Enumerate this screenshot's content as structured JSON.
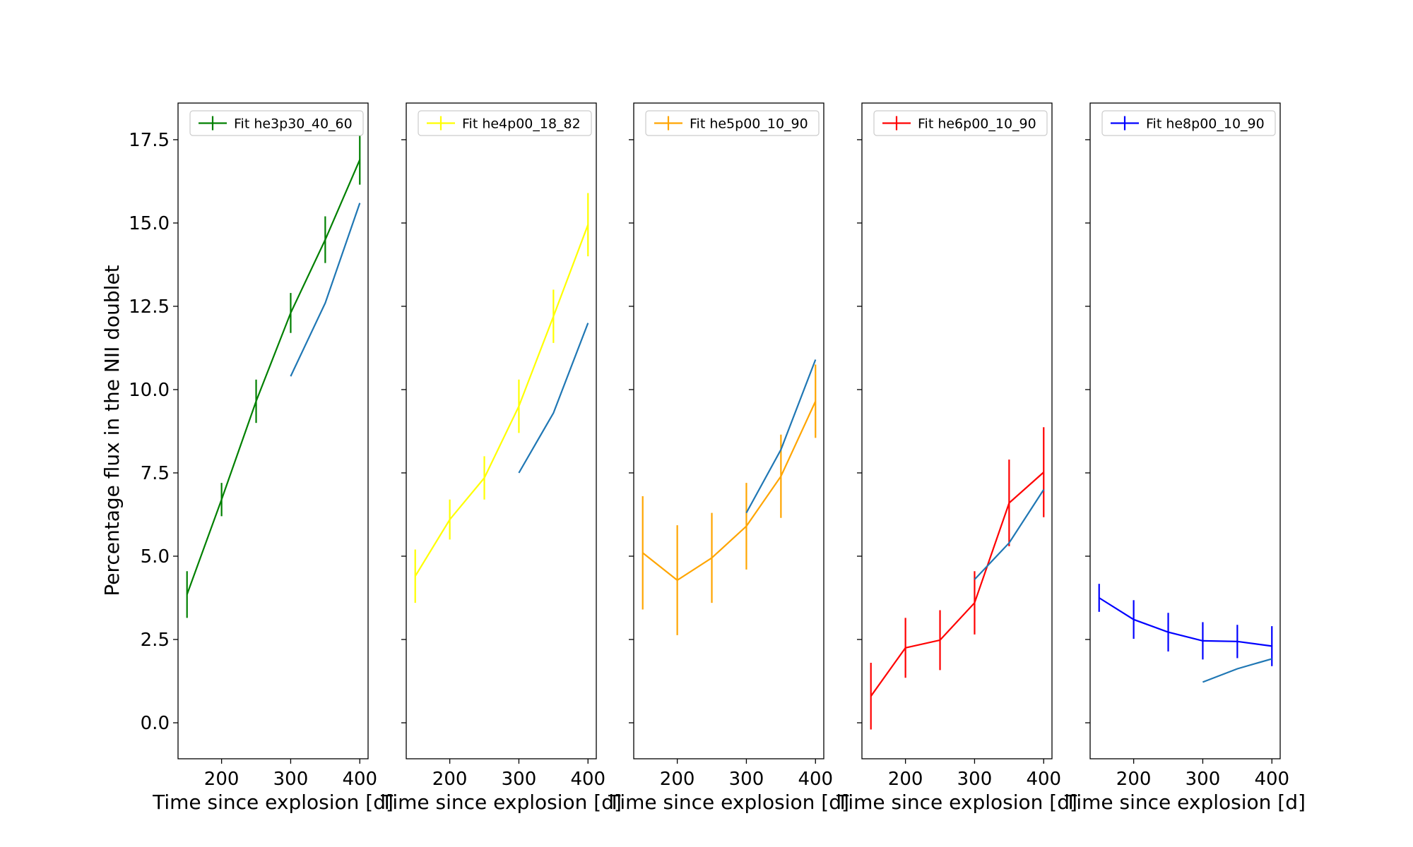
{
  "figure": {
    "ylabel": "Percentage flux in the NII doublet",
    "xlabel": "Time since explosion [d]"
  },
  "chart_data": [
    {
      "type": "line",
      "xlim": [
        137,
        412
      ],
      "ylim": [
        -1.08,
        18.6
      ],
      "xticks": [
        200,
        300,
        400
      ],
      "yticks": [
        0.0,
        2.5,
        5.0,
        7.5,
        10.0,
        12.5,
        15.0,
        17.5
      ],
      "ytick_labels": [
        "0.0",
        "2.5",
        "5.0",
        "7.5",
        "10.0",
        "12.5",
        "15.0",
        "17.5"
      ],
      "xlabel": "Time since explosion [d]",
      "legend": "top-left",
      "series": [
        {
          "name": "Fit he3p30_40_60",
          "color": "#008000",
          "x": [
            150,
            200,
            250,
            300,
            350,
            400
          ],
          "y": [
            3.85,
            6.7,
            9.65,
            12.3,
            14.5,
            16.9
          ],
          "err": [
            0.7,
            0.5,
            0.65,
            0.6,
            0.7,
            0.75
          ]
        },
        {
          "name": "",
          "color": "#1f77b4",
          "x": [
            300,
            350,
            400
          ],
          "y": [
            10.4,
            12.6,
            15.6
          ],
          "err": []
        }
      ]
    },
    {
      "type": "line",
      "xlim": [
        137,
        412
      ],
      "ylim": [
        -1.08,
        18.6
      ],
      "xticks": [
        200,
        300,
        400
      ],
      "yticks": [
        0.0,
        2.5,
        5.0,
        7.5,
        10.0,
        12.5,
        15.0,
        17.5
      ],
      "ytick_labels": [],
      "xlabel": "Time since explosion [d]",
      "legend": "top-left",
      "series": [
        {
          "name": "Fit he4p00_18_82",
          "color": "#ffff00",
          "x": [
            150,
            200,
            250,
            300,
            350,
            400
          ],
          "y": [
            4.4,
            6.1,
            7.35,
            9.5,
            12.2,
            14.95
          ],
          "err": [
            0.8,
            0.6,
            0.65,
            0.8,
            0.8,
            0.95
          ]
        },
        {
          "name": "",
          "color": "#1f77b4",
          "x": [
            300,
            350,
            400
          ],
          "y": [
            7.5,
            9.3,
            12.0
          ],
          "err": []
        }
      ]
    },
    {
      "type": "line",
      "xlim": [
        137,
        412
      ],
      "ylim": [
        -1.08,
        18.6
      ],
      "xticks": [
        200,
        300,
        400
      ],
      "yticks": [
        0.0,
        2.5,
        5.0,
        7.5,
        10.0,
        12.5,
        15.0,
        17.5
      ],
      "ytick_labels": [],
      "xlabel": "Time since explosion [d]",
      "legend": "top-left",
      "series": [
        {
          "name": "Fit he5p00_10_90",
          "color": "#ffa500",
          "x": [
            150,
            200,
            250,
            300,
            350,
            400
          ],
          "y": [
            5.1,
            4.28,
            4.95,
            5.9,
            7.4,
            9.65
          ],
          "err": [
            1.7,
            1.65,
            1.35,
            1.3,
            1.25,
            1.1
          ]
        },
        {
          "name": "",
          "color": "#1f77b4",
          "x": [
            300,
            350,
            400
          ],
          "y": [
            6.3,
            8.2,
            10.9
          ],
          "err": []
        }
      ]
    },
    {
      "type": "line",
      "xlim": [
        137,
        412
      ],
      "ylim": [
        -1.08,
        18.6
      ],
      "xticks": [
        200,
        300,
        400
      ],
      "yticks": [
        0.0,
        2.5,
        5.0,
        7.5,
        10.0,
        12.5,
        15.0,
        17.5
      ],
      "ytick_labels": [],
      "xlabel": "Time since explosion [d]",
      "legend": "top-left",
      "series": [
        {
          "name": "Fit he6p00_10_90",
          "color": "#ff0000",
          "x": [
            150,
            200,
            250,
            300,
            350,
            400
          ],
          "y": [
            0.8,
            2.25,
            2.48,
            3.6,
            6.6,
            7.52
          ],
          "err": [
            1.0,
            0.9,
            0.9,
            0.95,
            1.3,
            1.35
          ]
        },
        {
          "name": "",
          "color": "#1f77b4",
          "x": [
            300,
            350,
            400
          ],
          "y": [
            4.3,
            5.4,
            7.0
          ],
          "err": []
        }
      ]
    },
    {
      "type": "line",
      "xlim": [
        137,
        412
      ],
      "ylim": [
        -1.08,
        18.6
      ],
      "xticks": [
        200,
        300,
        400
      ],
      "yticks": [
        0.0,
        2.5,
        5.0,
        7.5,
        10.0,
        12.5,
        15.0,
        17.5
      ],
      "ytick_labels": [],
      "xlabel": "Time since explosion [d]",
      "legend": "top-left",
      "series": [
        {
          "name": "Fit he8p00_10_90",
          "color": "#0000ff",
          "x": [
            150,
            200,
            250,
            300,
            350,
            400
          ],
          "y": [
            3.75,
            3.1,
            2.72,
            2.46,
            2.44,
            2.3
          ],
          "err": [
            0.42,
            0.58,
            0.58,
            0.56,
            0.5,
            0.6
          ]
        },
        {
          "name": "",
          "color": "#1f77b4",
          "x": [
            300,
            350,
            400
          ],
          "y": [
            1.22,
            1.62,
            1.92
          ],
          "err": []
        }
      ]
    }
  ]
}
